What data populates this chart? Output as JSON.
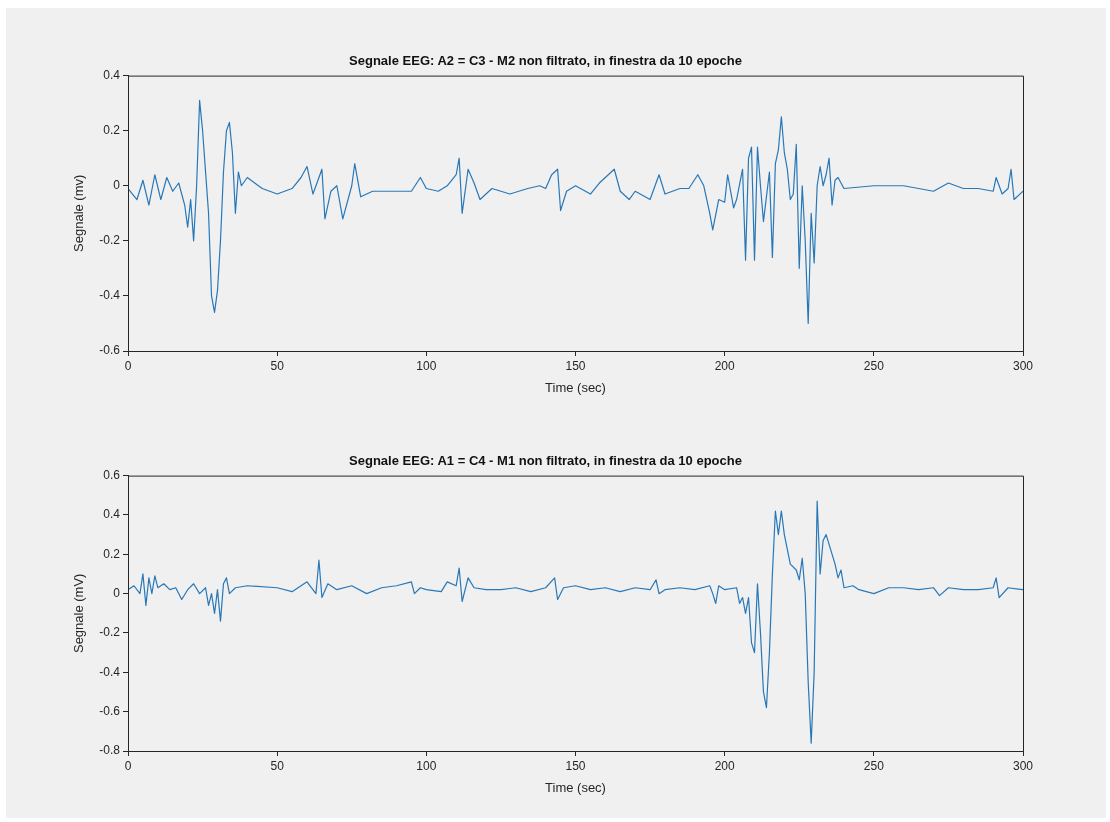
{
  "chart_data": [
    {
      "type": "line",
      "title": "Segnale EEG: A2 = C3 - M2 non filtrato, in finestra da 10 epoche",
      "xlabel": "Time (sec)",
      "ylabel": "Segnale (mv)",
      "xlim": [
        0,
        300
      ],
      "xticks": [
        0,
        50,
        100,
        150,
        200,
        250,
        300
      ],
      "ylim": [
        -0.6,
        0.4
      ],
      "yticks": [
        -0.6,
        -0.4,
        -0.2,
        0,
        0.2,
        0.4
      ],
      "marker": "none",
      "line_style": "solid",
      "legend": false,
      "grid": false,
      "series": [
        {
          "color": "#2878b8",
          "x": [
            0,
            3,
            5,
            7,
            9,
            11,
            13,
            15,
            17,
            19,
            20,
            21,
            22,
            23,
            24,
            25,
            26,
            27,
            28,
            29,
            30,
            31,
            32,
            33,
            34,
            35,
            36,
            37,
            38,
            40,
            45,
            50,
            55,
            58,
            60,
            62,
            65,
            66,
            68,
            70,
            72,
            75,
            76,
            78,
            82,
            90,
            95,
            98,
            100,
            104,
            107,
            110,
            111,
            112,
            114,
            116,
            118,
            122,
            128,
            134,
            138,
            140,
            142,
            144,
            145,
            147,
            150,
            155,
            158,
            163,
            165,
            168,
            170,
            175,
            178,
            180,
            185,
            188,
            191,
            193,
            195,
            196,
            198,
            200,
            201,
            203,
            204,
            206,
            207,
            208,
            209,
            210,
            211,
            212,
            213,
            215,
            216,
            217,
            218,
            219,
            220,
            221,
            222,
            223,
            224,
            225,
            226,
            227,
            228,
            229,
            230,
            231,
            232,
            233,
            234,
            235,
            236,
            237,
            238,
            240,
            250,
            260,
            270,
            275,
            280,
            285,
            290,
            291,
            293,
            295,
            296,
            297,
            300
          ],
          "values": [
            -0.01,
            -0.05,
            0.02,
            -0.07,
            0.04,
            -0.05,
            0.03,
            -0.02,
            0.01,
            -0.07,
            -0.15,
            -0.05,
            -0.2,
            0,
            0.31,
            0.2,
            0.05,
            -0.1,
            -0.4,
            -0.46,
            -0.38,
            -0.2,
            0.05,
            0.2,
            0.23,
            0.12,
            -0.1,
            0.05,
            0,
            0.03,
            -0.01,
            -0.03,
            -0.01,
            0.03,
            0.07,
            -0.03,
            0.06,
            -0.12,
            -0.02,
            0,
            -0.12,
            0,
            0.08,
            -0.04,
            -0.02,
            -0.02,
            -0.02,
            0.03,
            -0.01,
            -0.02,
            0,
            0.04,
            0.1,
            -0.1,
            0.06,
            0.01,
            -0.05,
            -0.01,
            -0.03,
            -0.01,
            0,
            -0.01,
            0.04,
            0.06,
            -0.09,
            -0.02,
            0,
            -0.03,
            0.01,
            0.06,
            -0.02,
            -0.05,
            -0.02,
            -0.05,
            0.04,
            -0.03,
            -0.01,
            -0.01,
            0.04,
            0,
            -0.1,
            -0.16,
            -0.05,
            -0.06,
            0.04,
            -0.08,
            -0.05,
            0.06,
            -0.27,
            0.1,
            0.14,
            -0.27,
            0.14,
            0,
            -0.13,
            0.05,
            -0.26,
            0.08,
            0.13,
            0.25,
            0.12,
            0.06,
            -0.05,
            -0.03,
            0.15,
            -0.3,
            0,
            -0.2,
            -0.5,
            -0.1,
            -0.28,
            0,
            0.07,
            0,
            0.04,
            0.1,
            -0.07,
            0.02,
            0.03,
            -0.01,
            0,
            0,
            -0.02,
            0.01,
            -0.01,
            -0.01,
            -0.02,
            0.03,
            -0.03,
            -0.01,
            0.06,
            -0.05,
            -0.02
          ]
        }
      ]
    },
    {
      "type": "line",
      "title": "Segnale EEG: A1 = C4 - M1 non filtrato, in finestra da 10 epoche",
      "xlabel": "Time (sec)",
      "ylabel": "Segnale (mV)",
      "xlim": [
        0,
        300
      ],
      "xticks": [
        0,
        50,
        100,
        150,
        200,
        250,
        300
      ],
      "ylim": [
        -0.8,
        0.6
      ],
      "yticks": [
        -0.8,
        -0.6,
        -0.4,
        -0.2,
        0,
        0.2,
        0.4,
        0.6
      ],
      "marker": "none",
      "line_style": "solid",
      "legend": false,
      "grid": false,
      "series": [
        {
          "color": "#2878b8",
          "x": [
            0,
            2,
            4,
            5,
            6,
            7,
            8,
            9,
            10,
            12,
            14,
            16,
            18,
            20,
            22,
            24,
            26,
            27,
            28,
            29,
            30,
            31,
            32,
            33,
            34,
            36,
            40,
            50,
            55,
            58,
            60,
            63,
            64,
            65,
            67,
            70,
            75,
            80,
            85,
            90,
            95,
            96,
            98,
            100,
            105,
            107,
            110,
            111,
            112,
            114,
            116,
            120,
            125,
            130,
            135,
            140,
            143,
            144,
            146,
            150,
            155,
            160,
            165,
            170,
            175,
            177,
            178,
            180,
            185,
            190,
            195,
            196,
            197,
            198,
            200,
            204,
            205,
            206,
            207,
            208,
            209,
            210,
            211,
            212,
            213,
            214,
            215,
            216,
            217,
            218,
            219,
            220,
            222,
            224,
            225,
            226,
            227,
            228,
            229,
            230,
            231,
            232,
            233,
            234,
            235,
            237,
            238,
            239,
            240,
            243,
            245,
            250,
            255,
            260,
            265,
            270,
            272,
            275,
            280,
            285,
            290,
            291,
            292,
            295,
            300
          ],
          "values": [
            0.02,
            0.04,
            0,
            0.1,
            -0.06,
            0.08,
            0,
            0.09,
            0.03,
            0.05,
            0.02,
            0.03,
            -0.03,
            0.02,
            0.05,
            0,
            0.03,
            -0.06,
            0,
            -0.1,
            0.02,
            -0.14,
            0.05,
            0.08,
            0,
            0.03,
            0.04,
            0.03,
            0.01,
            0.04,
            0.06,
            0,
            0.17,
            -0.02,
            0.05,
            0.02,
            0.04,
            0,
            0.03,
            0.04,
            0.06,
            0,
            0.03,
            0.02,
            0.01,
            0.06,
            0.04,
            0.13,
            -0.04,
            0.08,
            0.03,
            0.02,
            0.02,
            0.03,
            0.01,
            0.03,
            0.08,
            -0.03,
            0.03,
            0.04,
            0.02,
            0.03,
            0.01,
            0.03,
            0.02,
            0.07,
            0,
            0.02,
            0.03,
            0.02,
            0.04,
            0,
            -0.05,
            0.04,
            0.02,
            0.03,
            -0.05,
            -0.02,
            -0.1,
            -0.02,
            -0.25,
            -0.3,
            0.05,
            -0.2,
            -0.5,
            -0.58,
            -0.3,
            0.1,
            0.42,
            0.3,
            0.42,
            0.3,
            0.15,
            0.12,
            0.07,
            0.18,
            0,
            -0.45,
            -0.76,
            -0.4,
            0.47,
            0.1,
            0.27,
            0.3,
            0.25,
            0.15,
            0.08,
            0.12,
            0.03,
            0.04,
            0.02,
            0,
            0.03,
            0.03,
            0.02,
            0.03,
            -0.01,
            0.03,
            0.02,
            0.02,
            0.03,
            0.08,
            -0.02,
            0.03,
            0.02
          ]
        }
      ]
    }
  ]
}
